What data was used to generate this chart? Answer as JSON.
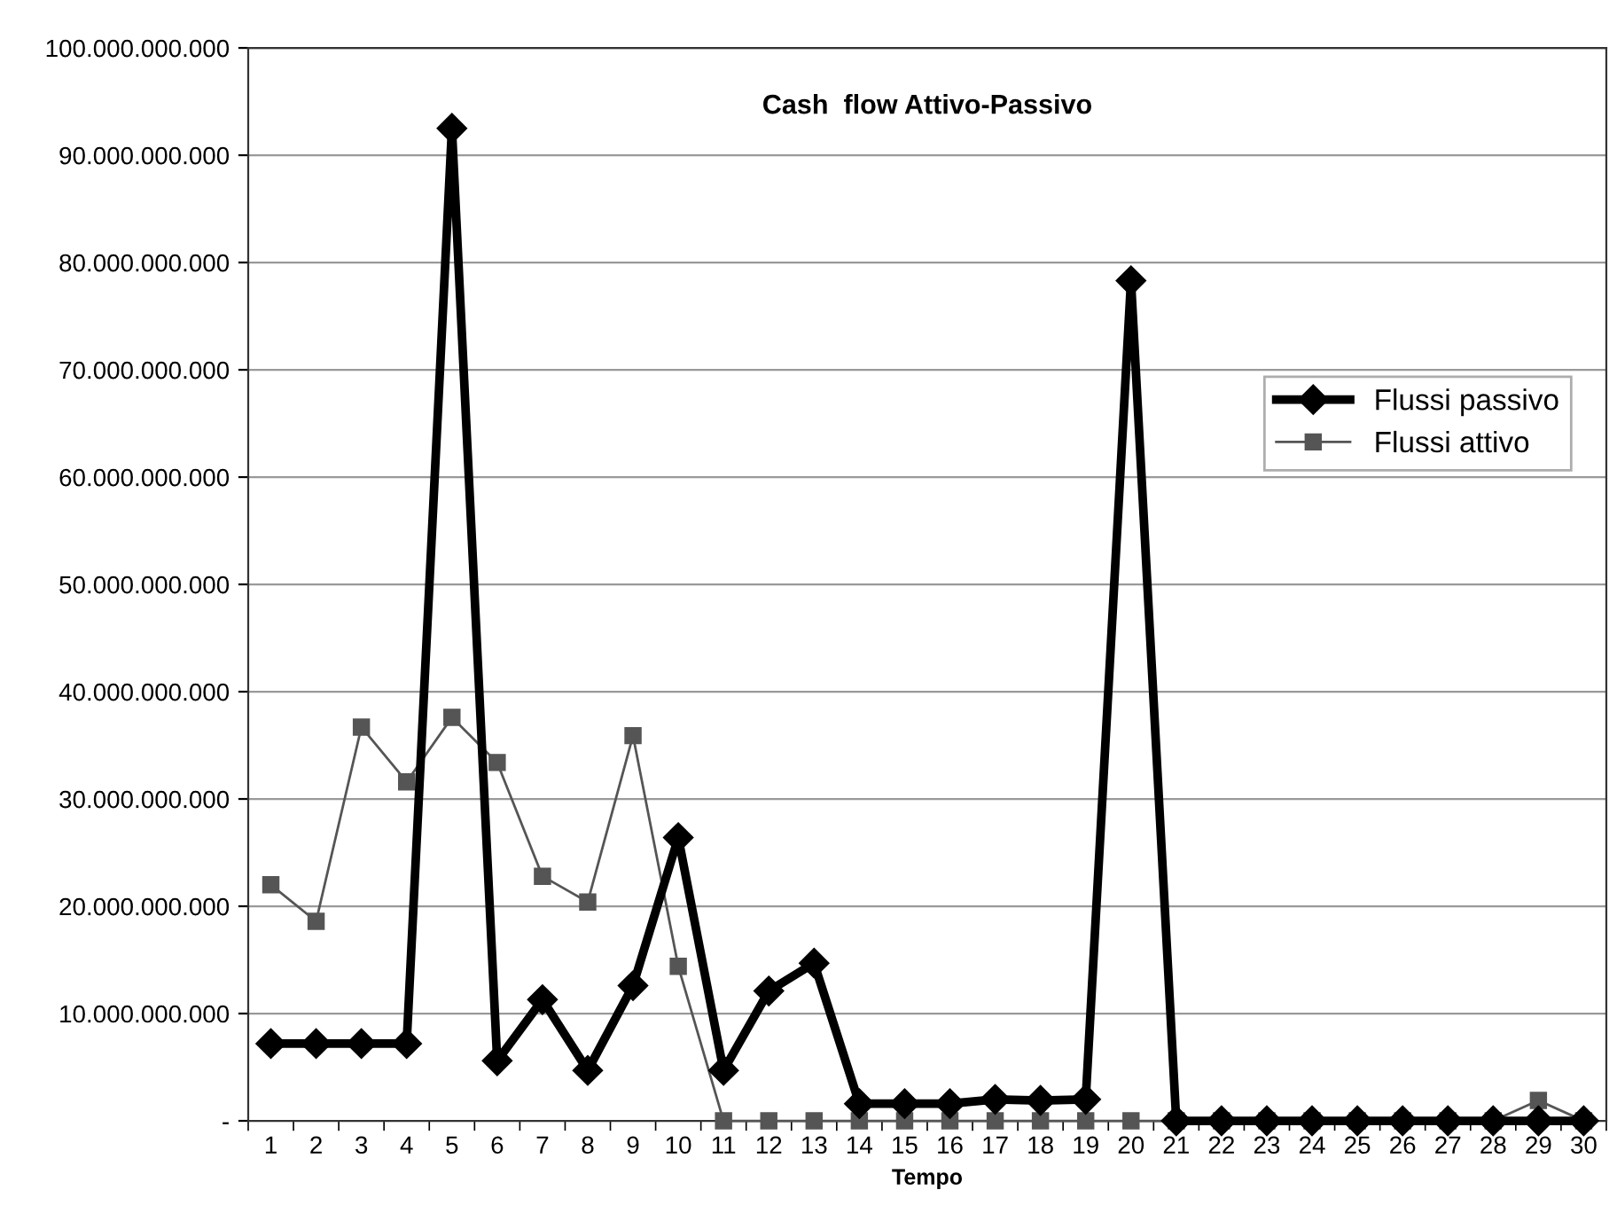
{
  "chart_data": {
    "type": "line",
    "title": "Cash  flow Attivo-Passivo",
    "xlabel": "Tempo",
    "categories": [
      "1",
      "2",
      "3",
      "4",
      "5",
      "6",
      "7",
      "8",
      "9",
      "10",
      "11",
      "12",
      "13",
      "14",
      "15",
      "16",
      "17",
      "18",
      "19",
      "20",
      "21",
      "22",
      "23",
      "24",
      "25",
      "26",
      "27",
      "28",
      "29",
      "30"
    ],
    "series": [
      {
        "name": "Flussi passivo",
        "color": "#000000",
        "marker": "diamond",
        "values": [
          7200000000,
          7200000000,
          7200000000,
          7200000000,
          92500000000,
          5600000000,
          11300000000,
          4700000000,
          12600000000,
          26400000000,
          4700000000,
          12100000000,
          14700000000,
          1600000000,
          1600000000,
          1600000000,
          2000000000,
          1900000000,
          2000000000,
          78300000000,
          0,
          0,
          0,
          0,
          0,
          0,
          0,
          0,
          0,
          0
        ]
      },
      {
        "name": "Flussi attivo",
        "color": "#555555",
        "marker": "square",
        "values": [
          22000000000,
          18600000000,
          36700000000,
          31600000000,
          37600000000,
          33400000000,
          22800000000,
          20400000000,
          35900000000,
          14400000000,
          0,
          0,
          0,
          0,
          0,
          0,
          0,
          0,
          0,
          0,
          0,
          0,
          0,
          0,
          0,
          0,
          0,
          0,
          1900000000,
          0
        ]
      }
    ],
    "ylim": [
      0,
      100000000000
    ],
    "yticks": [
      {
        "value": 0,
        "label": "-"
      },
      {
        "value": 10000000000,
        "label": "10.000.000.000"
      },
      {
        "value": 20000000000,
        "label": "20.000.000.000"
      },
      {
        "value": 30000000000,
        "label": "30.000.000.000"
      },
      {
        "value": 40000000000,
        "label": "40.000.000.000"
      },
      {
        "value": 50000000000,
        "label": "50.000.000.000"
      },
      {
        "value": 60000000000,
        "label": "60.000.000.000"
      },
      {
        "value": 70000000000,
        "label": "70.000.000.000"
      },
      {
        "value": 80000000000,
        "label": "80.000.000.000"
      },
      {
        "value": 90000000000,
        "label": "90.000.000.000"
      },
      {
        "value": 100000000000,
        "label": "100.000.000.000"
      }
    ],
    "grid": "y",
    "legend": "right"
  }
}
